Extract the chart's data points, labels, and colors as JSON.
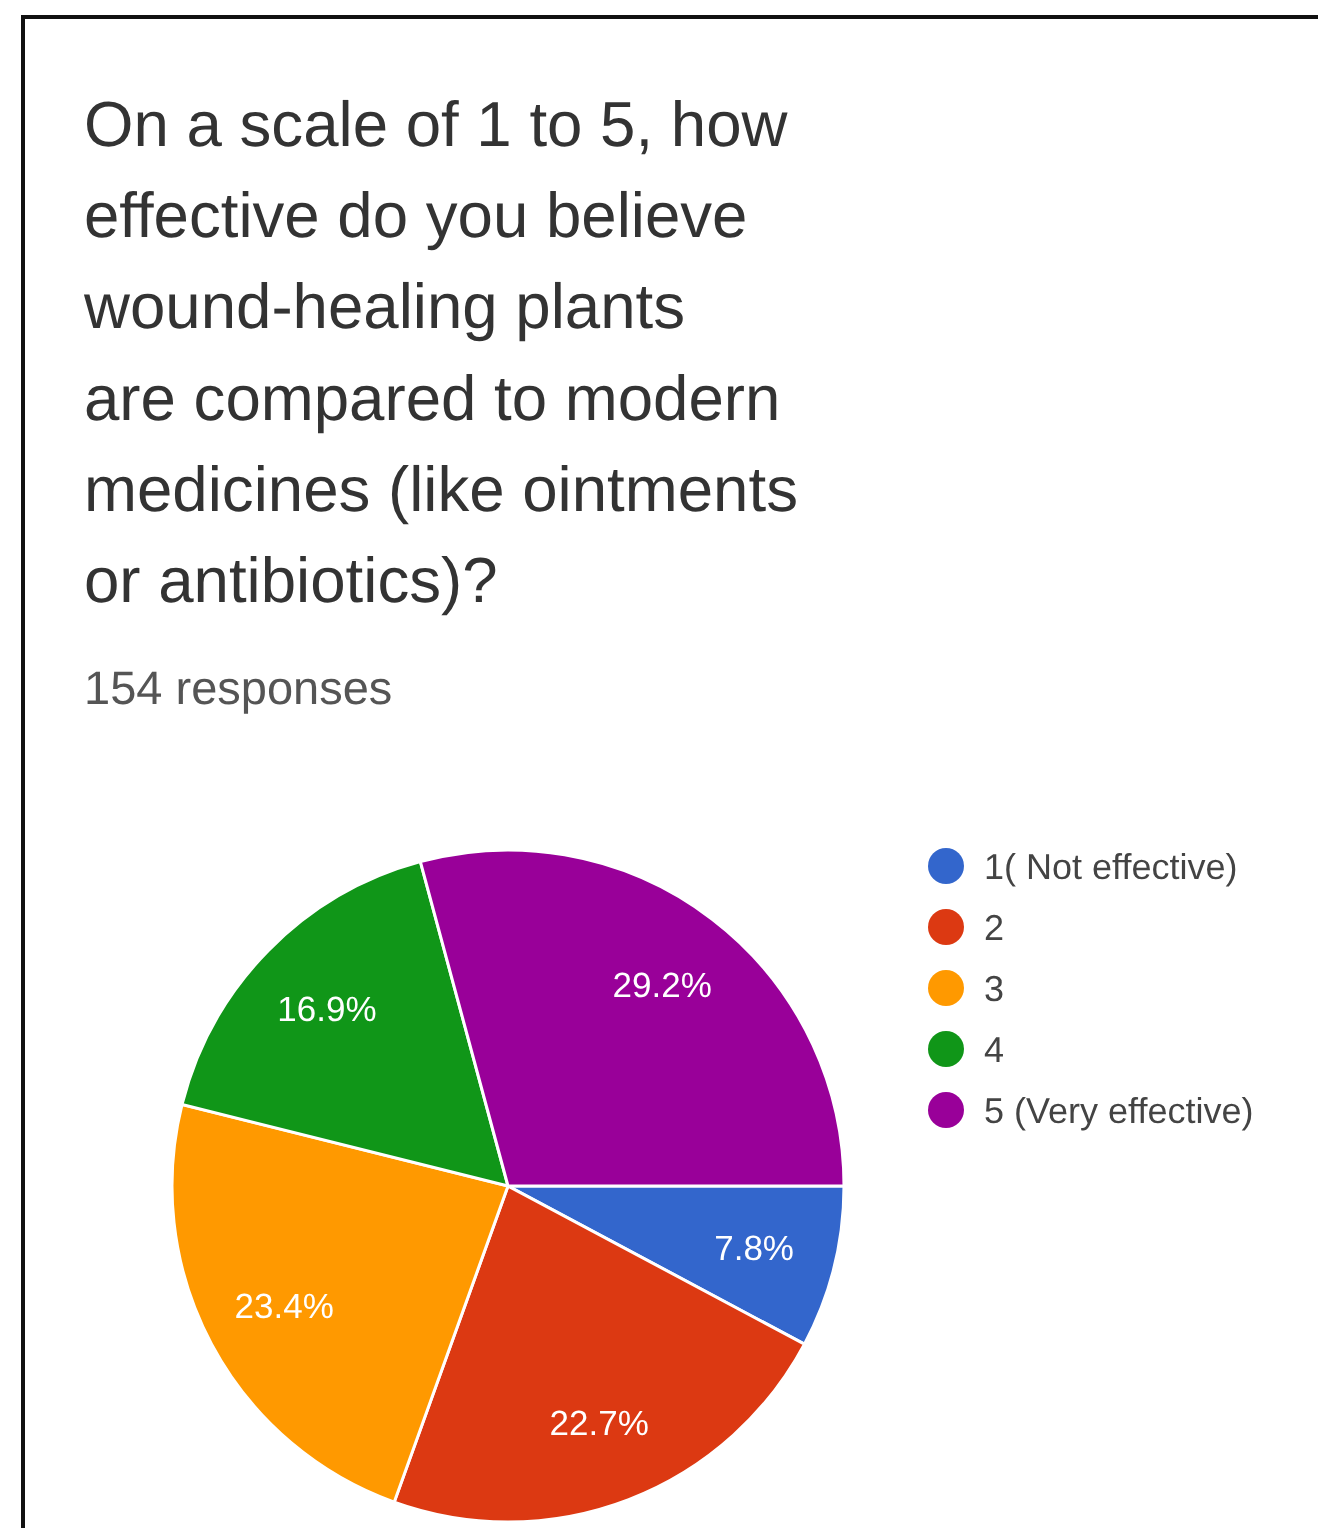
{
  "chart_data": {
    "type": "pie",
    "title": "On a scale of 1 to 5, how\neffective do you believe\nwound-healing plants\nare compared to modern\nmedicines (like ointments\nor antibiotics)?",
    "subtitle": "154 responses",
    "categories": [
      "1( Not effective)",
      "2",
      "3",
      "4",
      "5 (Very effective)"
    ],
    "values": [
      7.8,
      22.7,
      23.4,
      16.9,
      29.2
    ],
    "colors": [
      "#3366cc",
      "#dc3912",
      "#ff9900",
      "#109618",
      "#990099"
    ],
    "value_labels": [
      "7.8%",
      "22.7%",
      "23.4%",
      "16.9%",
      "29.2%"
    ],
    "legend": "right"
  }
}
